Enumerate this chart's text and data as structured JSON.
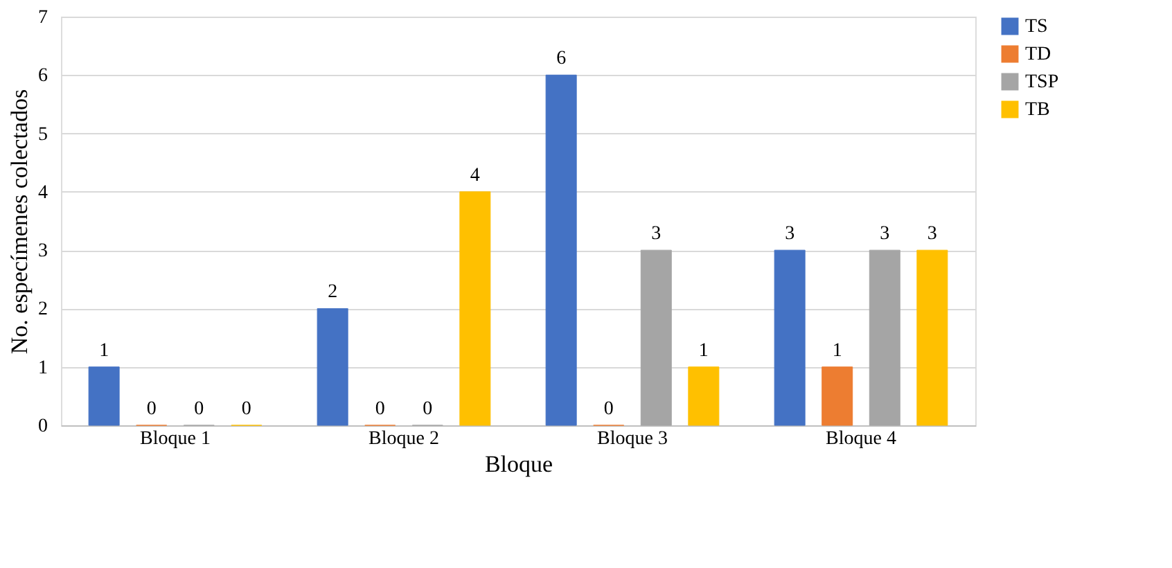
{
  "chart_data": {
    "type": "bar",
    "xlabel": "Bloque",
    "ylabel": "No. especímenes colectados",
    "categories": [
      "Bloque 1",
      "Bloque 2",
      "Bloque 3",
      "Bloque 4"
    ],
    "series": [
      {
        "name": "TS",
        "color": "#4472c4",
        "values": [
          1,
          2,
          6,
          3
        ]
      },
      {
        "name": "TD",
        "color": "#ed7d31",
        "values": [
          0,
          0,
          0,
          1
        ]
      },
      {
        "name": "TSP",
        "color": "#a5a5a5",
        "values": [
          0,
          0,
          3,
          3
        ]
      },
      {
        "name": "TB",
        "color": "#ffc000",
        "values": [
          0,
          4,
          1,
          3
        ]
      }
    ],
    "ylim": [
      0,
      7
    ],
    "yticks": [
      0,
      1,
      2,
      3,
      4,
      5,
      6,
      7
    ],
    "grid": "y",
    "legend": "right",
    "data_labels": true
  }
}
